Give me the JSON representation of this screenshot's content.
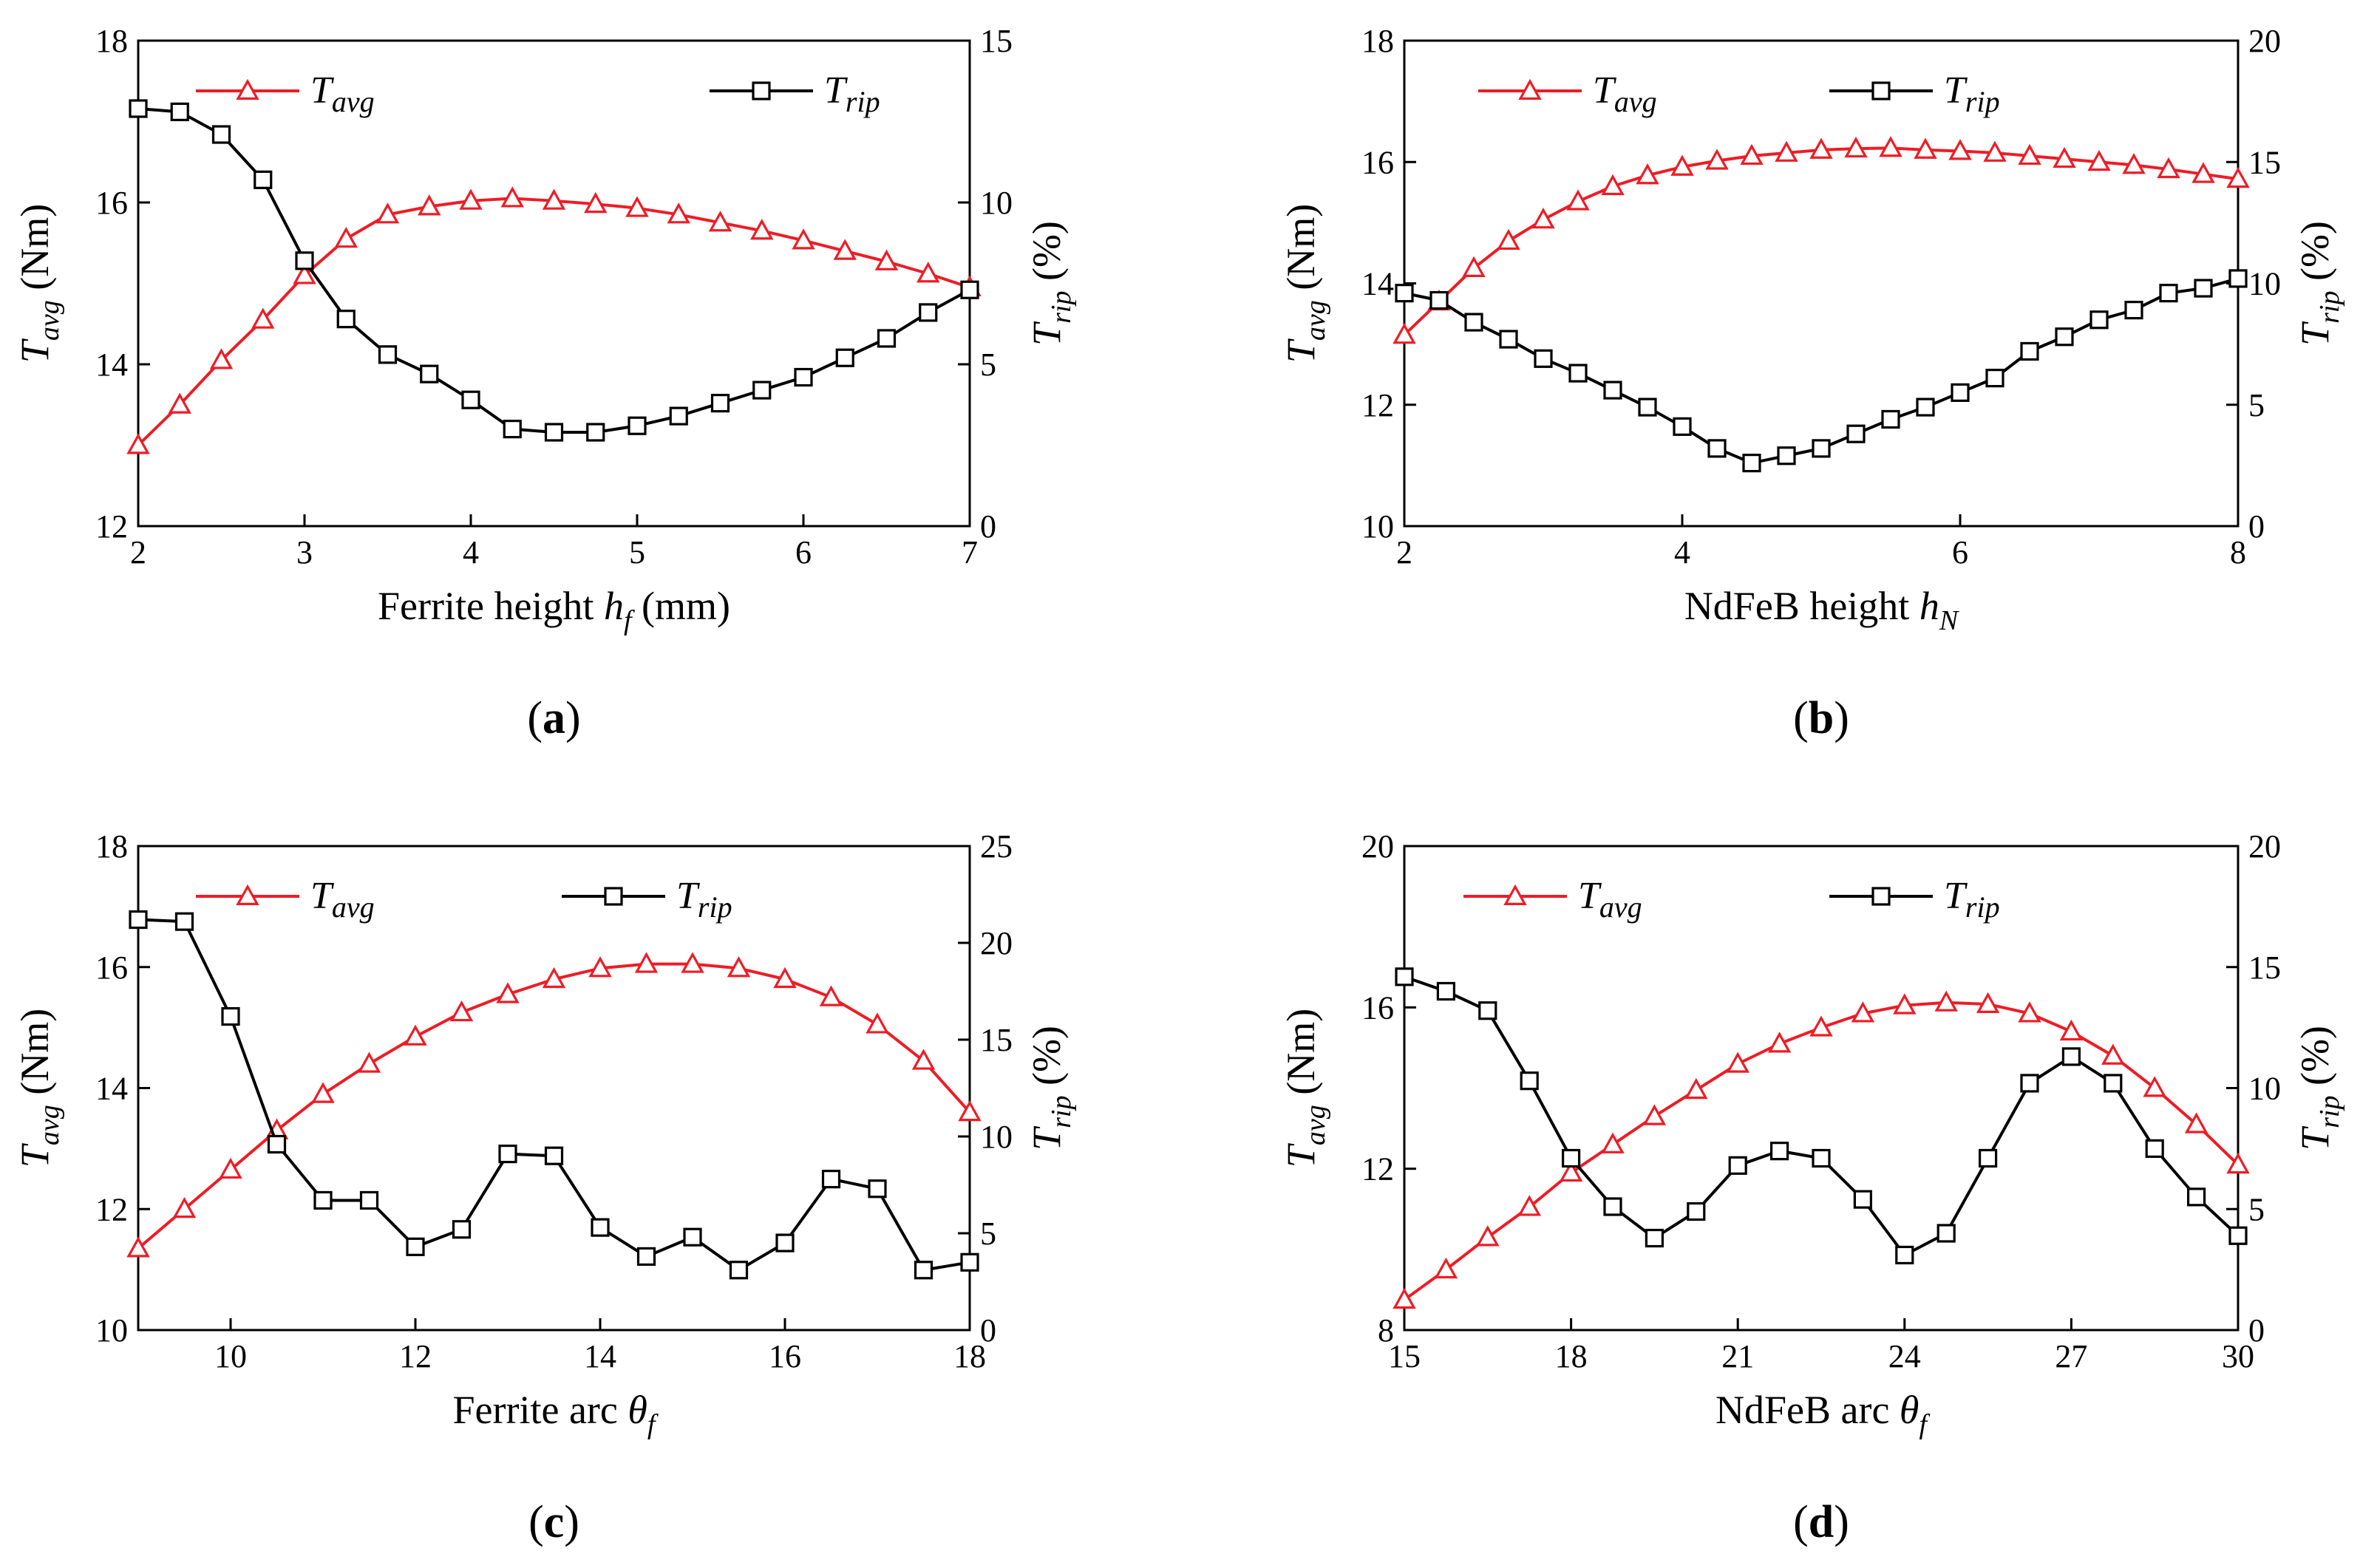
{
  "colors": {
    "avg": "#ee1c25",
    "rip": "#000000",
    "axis": "#000000"
  },
  "chart_data": [
    {
      "type": "line",
      "panel_label": "a",
      "x": [
        2,
        2.25,
        2.5,
        2.75,
        3,
        3.25,
        3.5,
        3.75,
        4,
        4.25,
        4.5,
        4.75,
        5,
        5.25,
        5.5,
        5.75,
        6,
        6.25,
        6.5,
        6.75,
        7
      ],
      "xlim": [
        2,
        7
      ],
      "xticks": [
        2,
        3,
        4,
        5,
        6,
        7
      ],
      "ylim": [
        12,
        18
      ],
      "yticks": [
        12,
        14,
        16,
        18
      ],
      "y2lim": [
        0,
        15
      ],
      "y2ticks": [
        0,
        5,
        10,
        15
      ],
      "xlabel": {
        "text": "Ferrite height ",
        "var": "h",
        "sub": "f",
        "unit": " (mm)"
      },
      "ylabel": {
        "var": "T",
        "sub": "avg",
        "unit": " (Nm)"
      },
      "y2label": {
        "var": "T",
        "sub": "rip",
        "unit": " (%)"
      },
      "series": [
        {
          "name": "T",
          "name_sub": "avg",
          "axis": "left",
          "marker": "triangle",
          "values": [
            13.0,
            13.5,
            14.05,
            14.55,
            15.1,
            15.55,
            15.85,
            15.95,
            16.02,
            16.05,
            16.02,
            15.98,
            15.93,
            15.85,
            15.75,
            15.65,
            15.53,
            15.4,
            15.27,
            15.12,
            14.95
          ]
        },
        {
          "name": "T",
          "name_sub": "rip",
          "axis": "right",
          "marker": "square",
          "values": [
            12.9,
            12.8,
            12.1,
            10.7,
            8.2,
            6.4,
            5.3,
            4.7,
            3.9,
            3.0,
            2.9,
            2.9,
            3.1,
            3.4,
            3.8,
            4.2,
            4.6,
            5.2,
            5.8,
            6.6,
            7.3
          ]
        }
      ]
    },
    {
      "type": "line",
      "panel_label": "b",
      "x": [
        2,
        2.25,
        2.5,
        2.75,
        3,
        3.25,
        3.5,
        3.75,
        4,
        4.25,
        4.5,
        4.75,
        5,
        5.25,
        5.5,
        5.75,
        6,
        6.25,
        6.5,
        6.75,
        7,
        7.25,
        7.5,
        7.75,
        8
      ],
      "xlim": [
        2,
        8
      ],
      "xticks": [
        2,
        4,
        6,
        8
      ],
      "ylim": [
        10,
        18
      ],
      "yticks": [
        10,
        12,
        14,
        16,
        18
      ],
      "y2lim": [
        0,
        20
      ],
      "y2ticks": [
        0,
        5,
        10,
        15,
        20
      ],
      "xlabel": {
        "text": "NdFeB height ",
        "var": "h",
        "sub": "N",
        "unit": ""
      },
      "ylabel": {
        "var": "T",
        "sub": "avg",
        "unit": " (Nm)"
      },
      "y2label": {
        "var": "T",
        "sub": "rip",
        "unit": " (%)"
      },
      "series": [
        {
          "name": "T",
          "name_sub": "avg",
          "axis": "left",
          "marker": "triangle",
          "values": [
            13.15,
            13.7,
            14.25,
            14.7,
            15.05,
            15.35,
            15.6,
            15.78,
            15.92,
            16.02,
            16.1,
            16.15,
            16.2,
            16.22,
            16.23,
            16.2,
            16.18,
            16.15,
            16.1,
            16.05,
            16.0,
            15.95,
            15.88,
            15.8,
            15.72
          ]
        },
        {
          "name": "T",
          "name_sub": "rip",
          "axis": "right",
          "marker": "square",
          "values": [
            9.6,
            9.3,
            8.4,
            7.7,
            6.9,
            6.3,
            5.6,
            4.9,
            4.1,
            3.2,
            2.6,
            2.9,
            3.2,
            3.8,
            4.4,
            4.9,
            5.5,
            6.1,
            7.2,
            7.8,
            8.5,
            8.9,
            9.6,
            9.8,
            10.2
          ]
        }
      ]
    },
    {
      "type": "line",
      "panel_label": "c",
      "x": [
        9,
        9.5,
        10,
        10.5,
        11,
        11.5,
        12,
        12.5,
        13,
        13.5,
        14,
        14.5,
        15,
        15.5,
        16,
        16.5,
        17,
        17.5,
        18
      ],
      "xlim": [
        9,
        18
      ],
      "xticks": [
        10,
        12,
        14,
        16,
        18
      ],
      "ylim": [
        10,
        18
      ],
      "yticks": [
        10,
        12,
        14,
        16,
        18
      ],
      "y2lim": [
        0,
        25
      ],
      "y2ticks": [
        0,
        5,
        10,
        15,
        20,
        25
      ],
      "xlabel": {
        "text": "Ferrite arc ",
        "var": "θ",
        "sub": "f",
        "unit": ""
      },
      "ylabel": {
        "var": "T",
        "sub": "avg",
        "unit": " (Nm)"
      },
      "y2label": {
        "var": "T",
        "sub": "rip",
        "unit": " (%)"
      },
      "series": [
        {
          "name": "T",
          "name_sub": "avg",
          "axis": "left",
          "marker": "triangle",
          "values": [
            11.35,
            12.0,
            12.65,
            13.3,
            13.9,
            14.4,
            14.85,
            15.25,
            15.55,
            15.8,
            15.98,
            16.05,
            16.05,
            15.98,
            15.8,
            15.5,
            15.05,
            14.45,
            13.6
          ]
        },
        {
          "name": "T",
          "name_sub": "rip",
          "axis": "right",
          "marker": "square",
          "values": [
            21.2,
            21.1,
            16.2,
            9.6,
            6.7,
            6.7,
            4.3,
            5.2,
            9.1,
            9.0,
            5.3,
            3.8,
            4.8,
            3.1,
            4.5,
            7.8,
            7.3,
            3.1,
            3.5
          ]
        }
      ]
    },
    {
      "type": "line",
      "panel_label": "d",
      "x": [
        15,
        15.75,
        16.5,
        17.25,
        18,
        18.75,
        19.5,
        20.25,
        21,
        21.75,
        22.5,
        23.25,
        24,
        24.75,
        25.5,
        26.25,
        27,
        27.75,
        28.5,
        29.25,
        30
      ],
      "xlim": [
        15,
        30
      ],
      "xticks": [
        15,
        18,
        21,
        24,
        27,
        30
      ],
      "ylim": [
        8,
        20
      ],
      "yticks": [
        8,
        12,
        16,
        20
      ],
      "y2lim": [
        0,
        20
      ],
      "y2ticks": [
        0,
        5,
        10,
        15,
        20
      ],
      "xlabel": {
        "text": "NdFeB arc ",
        "var": "θ",
        "sub": "f",
        "unit": ""
      },
      "ylabel": {
        "var": "T",
        "sub": "avg",
        "unit": " (Nm)"
      },
      "y2label": {
        "var": "T",
        "sub": "rip",
        "unit": " (%)"
      },
      "series": [
        {
          "name": "T",
          "name_sub": "avg",
          "axis": "left",
          "marker": "triangle",
          "values": [
            8.75,
            9.5,
            10.3,
            11.05,
            11.9,
            12.6,
            13.3,
            13.95,
            14.6,
            15.1,
            15.5,
            15.85,
            16.05,
            16.12,
            16.08,
            15.85,
            15.4,
            14.8,
            14.0,
            13.1,
            12.1
          ]
        },
        {
          "name": "T",
          "name_sub": "rip",
          "axis": "right",
          "marker": "square",
          "values": [
            14.6,
            14.0,
            13.2,
            10.3,
            7.1,
            5.1,
            3.8,
            4.9,
            6.8,
            7.4,
            7.1,
            5.4,
            3.1,
            4.0,
            7.1,
            10.2,
            11.3,
            10.2,
            7.5,
            5.5,
            3.9
          ]
        }
      ]
    }
  ]
}
